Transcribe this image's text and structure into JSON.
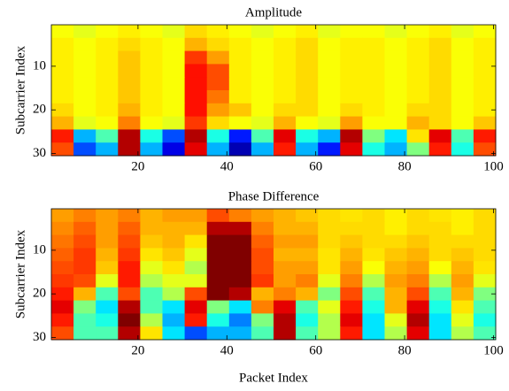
{
  "chart_data": [
    {
      "type": "heatmap",
      "title": "Amplitude",
      "ylabel": "Subcarrier Index",
      "colormap": "jet",
      "clim": [
        0,
        1
      ],
      "xlim": [
        0.5,
        100.5
      ],
      "ylim": [
        0.5,
        30.5
      ],
      "yreverse": true,
      "xticks": [
        20,
        40,
        60,
        80,
        100
      ],
      "yticks": [
        10,
        20,
        30
      ],
      "x": [
        3,
        8,
        13,
        18,
        23,
        28,
        33,
        38,
        43,
        48,
        53,
        58,
        63,
        68,
        73,
        78,
        83,
        88,
        93,
        98
      ],
      "y": [
        2,
        5,
        8,
        11,
        14,
        17,
        20,
        23,
        26,
        29
      ],
      "z": [
        [
          0.62,
          0.6,
          0.62,
          0.64,
          0.62,
          0.6,
          0.66,
          0.64,
          0.62,
          0.6,
          0.62,
          0.64,
          0.6,
          0.62,
          0.62,
          0.6,
          0.62,
          0.64,
          0.6,
          0.62
        ],
        [
          0.64,
          0.62,
          0.64,
          0.66,
          0.64,
          0.62,
          0.7,
          0.66,
          0.64,
          0.62,
          0.64,
          0.66,
          0.62,
          0.64,
          0.64,
          0.62,
          0.64,
          0.66,
          0.62,
          0.64
        ],
        [
          0.64,
          0.62,
          0.64,
          0.68,
          0.64,
          0.62,
          0.82,
          0.72,
          0.64,
          0.62,
          0.64,
          0.66,
          0.62,
          0.64,
          0.64,
          0.62,
          0.64,
          0.66,
          0.62,
          0.64
        ],
        [
          0.64,
          0.62,
          0.64,
          0.68,
          0.64,
          0.62,
          0.86,
          0.8,
          0.64,
          0.62,
          0.64,
          0.66,
          0.62,
          0.64,
          0.64,
          0.62,
          0.64,
          0.66,
          0.62,
          0.64
        ],
        [
          0.64,
          0.62,
          0.64,
          0.68,
          0.64,
          0.62,
          0.86,
          0.8,
          0.64,
          0.62,
          0.64,
          0.66,
          0.62,
          0.64,
          0.64,
          0.62,
          0.64,
          0.66,
          0.62,
          0.64
        ],
        [
          0.64,
          0.62,
          0.64,
          0.68,
          0.64,
          0.62,
          0.86,
          0.76,
          0.64,
          0.62,
          0.64,
          0.66,
          0.62,
          0.64,
          0.64,
          0.62,
          0.64,
          0.66,
          0.62,
          0.64
        ],
        [
          0.66,
          0.62,
          0.64,
          0.7,
          0.64,
          0.62,
          0.86,
          0.72,
          0.68,
          0.62,
          0.66,
          0.66,
          0.62,
          0.66,
          0.64,
          0.62,
          0.66,
          0.66,
          0.62,
          0.64
        ],
        [
          0.7,
          0.6,
          0.62,
          0.75,
          0.62,
          0.6,
          0.82,
          0.66,
          0.62,
          0.6,
          0.7,
          0.62,
          0.6,
          0.72,
          0.62,
          0.62,
          0.7,
          0.66,
          0.62,
          0.68
        ],
        [
          0.85,
          0.3,
          0.45,
          0.95,
          0.4,
          0.2,
          0.95,
          0.4,
          0.15,
          0.45,
          0.9,
          0.4,
          0.3,
          0.95,
          0.5,
          0.35,
          0.65,
          0.9,
          0.45,
          0.85
        ],
        [
          0.8,
          0.2,
          0.3,
          0.95,
          0.3,
          0.1,
          0.9,
          0.3,
          0.05,
          0.3,
          0.85,
          0.3,
          0.15,
          0.9,
          0.4,
          0.3,
          0.5,
          0.85,
          0.4,
          0.8
        ]
      ]
    },
    {
      "type": "heatmap",
      "title": "Phase Difference",
      "xlabel": "Packet Index",
      "ylabel": "Subcarrier Index",
      "colormap": "jet",
      "clim": [
        0,
        1
      ],
      "xlim": [
        0.5,
        100.5
      ],
      "ylim": [
        0.5,
        30.5
      ],
      "yreverse": true,
      "xticks": [
        20,
        40,
        60,
        80,
        100
      ],
      "yticks": [
        10,
        20,
        30
      ],
      "x": [
        3,
        8,
        13,
        18,
        23,
        28,
        33,
        38,
        43,
        48,
        53,
        58,
        63,
        68,
        73,
        78,
        83,
        88,
        93,
        98
      ],
      "y": [
        2,
        5,
        8,
        11,
        14,
        17,
        20,
        23,
        26,
        29
      ],
      "z": [
        [
          0.72,
          0.75,
          0.72,
          0.75,
          0.7,
          0.72,
          0.72,
          0.8,
          0.75,
          0.72,
          0.7,
          0.68,
          0.66,
          0.65,
          0.66,
          0.64,
          0.66,
          0.65,
          0.64,
          0.66
        ],
        [
          0.74,
          0.78,
          0.72,
          0.78,
          0.7,
          0.7,
          0.7,
          0.95,
          0.95,
          0.75,
          0.7,
          0.7,
          0.66,
          0.66,
          0.66,
          0.64,
          0.66,
          0.66,
          0.64,
          0.66
        ],
        [
          0.76,
          0.8,
          0.72,
          0.8,
          0.68,
          0.7,
          0.65,
          1,
          1,
          0.78,
          0.72,
          0.72,
          0.66,
          0.68,
          0.66,
          0.66,
          0.68,
          0.66,
          0.66,
          0.66
        ],
        [
          0.78,
          0.82,
          0.7,
          0.82,
          0.65,
          0.68,
          0.6,
          1,
          1,
          0.8,
          0.7,
          0.7,
          0.65,
          0.7,
          0.65,
          0.68,
          0.7,
          0.66,
          0.68,
          0.66
        ],
        [
          0.8,
          0.82,
          0.68,
          0.85,
          0.6,
          0.65,
          0.55,
          1,
          1,
          0.8,
          0.72,
          0.72,
          0.65,
          0.72,
          0.62,
          0.7,
          0.72,
          0.62,
          0.7,
          0.65
        ],
        [
          0.82,
          0.8,
          0.6,
          0.85,
          0.55,
          0.6,
          0.6,
          1,
          1,
          0.82,
          0.72,
          0.75,
          0.6,
          0.75,
          0.55,
          0.72,
          0.75,
          0.55,
          0.72,
          0.6
        ],
        [
          0.85,
          0.7,
          0.45,
          0.8,
          0.45,
          0.55,
          0.8,
          1,
          0.95,
          0.7,
          0.75,
          0.7,
          0.5,
          0.8,
          0.45,
          0.7,
          0.8,
          0.45,
          0.7,
          0.5
        ],
        [
          0.9,
          0.5,
          0.35,
          0.95,
          0.45,
          0.35,
          0.9,
          0.5,
          0.35,
          0.75,
          0.9,
          0.45,
          0.6,
          0.85,
          0.4,
          0.7,
          0.9,
          0.4,
          0.65,
          0.45
        ],
        [
          0.85,
          0.45,
          0.4,
          1,
          0.55,
          0.3,
          0.85,
          0.4,
          0.25,
          0.5,
          0.95,
          0.4,
          0.55,
          0.9,
          0.35,
          0.6,
          0.95,
          0.35,
          0.6,
          0.4
        ],
        [
          0.8,
          0.45,
          0.45,
          0.95,
          0.65,
          0.35,
          0.2,
          0.3,
          0.3,
          0.45,
          0.95,
          0.45,
          0.55,
          0.85,
          0.35,
          0.55,
          0.9,
          0.35,
          0.55,
          0.45
        ]
      ]
    }
  ]
}
